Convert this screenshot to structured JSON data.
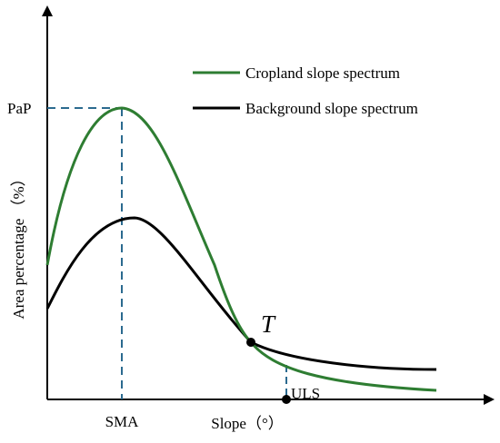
{
  "diagram": {
    "axes": {
      "xlabel": "Slope（°）",
      "ylabel": "Area percentage （%）"
    },
    "legend": {
      "placement": "top-right",
      "items": [
        {
          "label": "Cropland slope spectrum",
          "color": "#2e7d32"
        },
        {
          "label": "Background slope spectrum",
          "color": "#000000"
        }
      ]
    },
    "annotations": {
      "peak_y_label": "PaP",
      "peak_x_label": "SMA",
      "limit_x_label": "ULS",
      "intersection_label": "T"
    },
    "colors": {
      "cropland": "#2e7d32",
      "background": "#000000",
      "guide": "#2b6a8f"
    }
  }
}
